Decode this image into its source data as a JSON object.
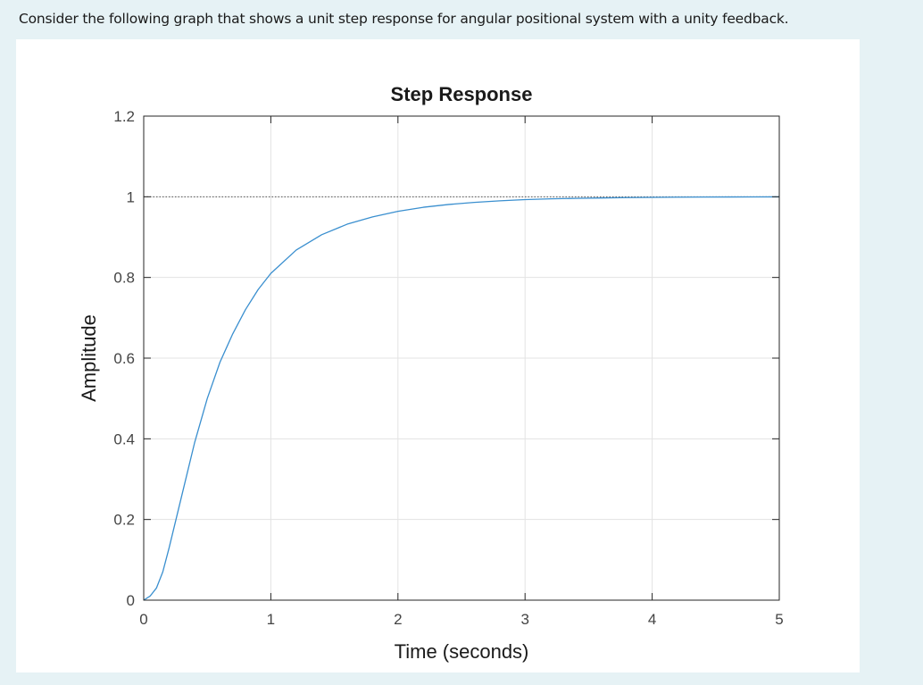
{
  "question": {
    "text": "Consider the following graph that shows a unit step response for angular positional system with a unity feedback."
  },
  "colors": {
    "page_background": "#e6f2f5",
    "panel_background": "#ffffff",
    "series_line": "#3a8fcf",
    "grid": "#e3e3e3",
    "axes": "#262626",
    "steady_state_line": "#555555"
  },
  "chart_data": {
    "type": "line",
    "title": "Step Response",
    "xlabel": "Time (seconds)",
    "ylabel": "Amplitude",
    "xlim": [
      0,
      5
    ],
    "ylim": [
      0,
      1.2
    ],
    "xticks": [
      0,
      1,
      2,
      3,
      4,
      5
    ],
    "xtick_labels": [
      "0",
      "1",
      "2",
      "3",
      "4",
      "5"
    ],
    "yticks": [
      0,
      0.2,
      0.4,
      0.6,
      0.8,
      1,
      1.2
    ],
    "ytick_labels": [
      "0",
      "0.2",
      "0.4",
      "0.6",
      "0.8",
      "1",
      "1.2"
    ],
    "grid": true,
    "legend": "none",
    "reference_line": {
      "y": 1,
      "style": "dotted"
    },
    "series": [
      {
        "x": [
          0,
          0.05,
          0.1,
          0.15,
          0.2,
          0.3,
          0.4,
          0.5,
          0.6,
          0.7,
          0.8,
          0.9,
          1.0,
          1.2,
          1.4,
          1.6,
          1.8,
          2.0,
          2.2,
          2.4,
          2.6,
          2.8,
          3.0,
          3.2,
          3.4,
          3.6,
          3.8,
          4.0,
          4.2,
          4.4,
          4.6,
          4.8,
          5.0
        ],
        "values": [
          0,
          0.01,
          0.03,
          0.07,
          0.13,
          0.26,
          0.39,
          0.5,
          0.59,
          0.66,
          0.72,
          0.77,
          0.81,
          0.868,
          0.906,
          0.932,
          0.95,
          0.964,
          0.974,
          0.981,
          0.986,
          0.99,
          0.993,
          0.995,
          0.996,
          0.997,
          0.998,
          0.9985,
          0.999,
          0.9993,
          0.9995,
          0.9997,
          0.9998
        ]
      }
    ]
  }
}
